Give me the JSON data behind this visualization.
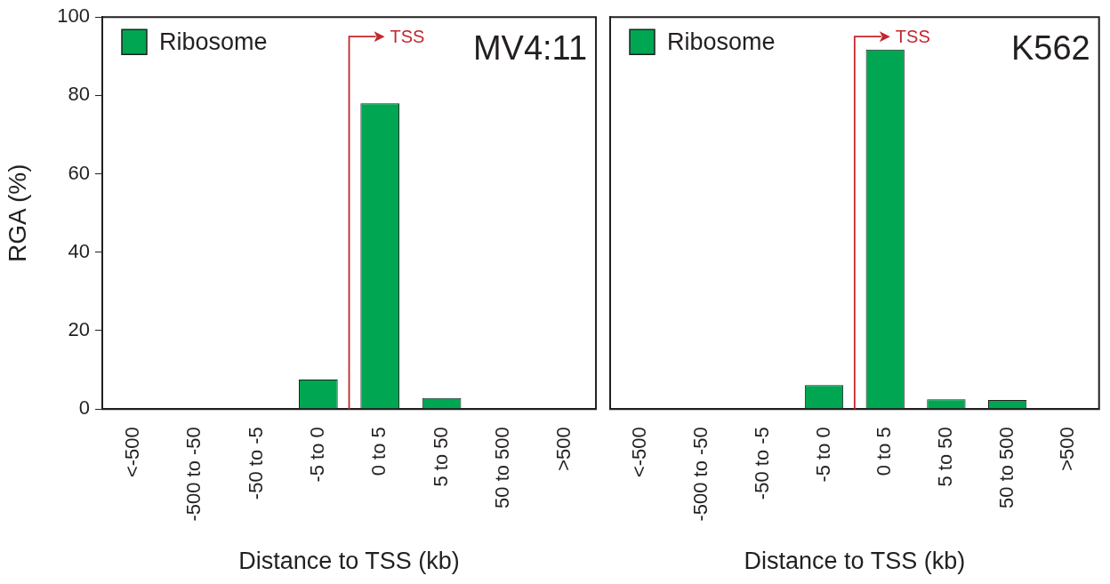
{
  "chart_data": [
    {
      "type": "bar",
      "title": "MV4:11",
      "xlabel": "Distance to TSS (kb)",
      "ylabel": "RGA (%)",
      "categories": [
        "<-500",
        "-500 to -50",
        "-50 to -5",
        "-5 to 0",
        "0 to 5",
        "5 to 50",
        "50 to 500",
        ">500"
      ],
      "series": [
        {
          "name": "Ribosome",
          "color": "#00a651",
          "values": [
            0,
            0,
            0,
            7.5,
            78,
            2.8,
            0,
            0
          ]
        }
      ],
      "ylim": [
        0,
        100
      ],
      "yticks": [
        0,
        20,
        40,
        60,
        80,
        100
      ],
      "grid": false,
      "legend": "top left",
      "annotations": [
        "TSS"
      ]
    },
    {
      "type": "bar",
      "title": "K562",
      "xlabel": "Distance to TSS (kb)",
      "categories": [
        "<-500",
        "-500 to -50",
        "-50 to -5",
        "-5 to 0",
        "0 to 5",
        "5 to 50",
        "50 to 500",
        ">500"
      ],
      "series": [
        {
          "name": "Ribosome",
          "color": "#00a651",
          "values": [
            0,
            0,
            0,
            6.1,
            91.7,
            2.5,
            2.3,
            0
          ]
        }
      ],
      "ylim": [
        0,
        100
      ],
      "yticks": [
        0,
        20,
        40,
        60,
        80,
        100
      ],
      "grid": false,
      "legend": "top left",
      "annotations": [
        "TSS"
      ],
      "tick_labels": "x"
    }
  ]
}
